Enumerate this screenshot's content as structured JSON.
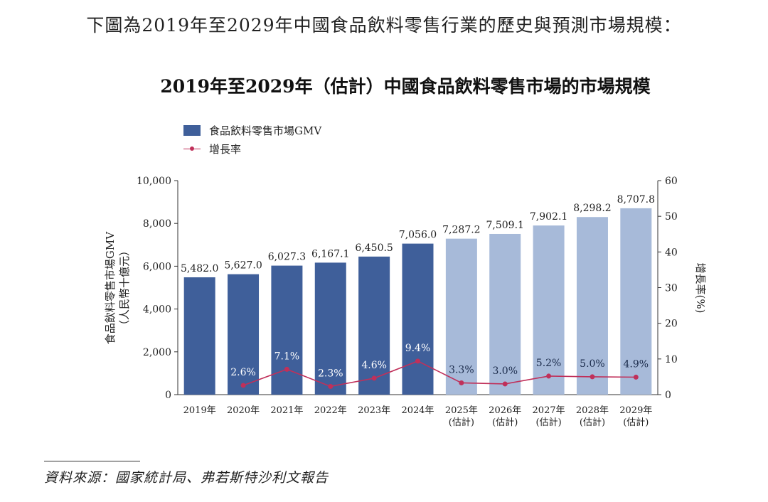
{
  "intro_text": "下圖為2019年至2029年中國食品飲料零售行業的歷史與預測市場規模：",
  "footnote": "資料來源：國家統計局、弗若斯特沙利文報告",
  "chart_data": {
    "type": "bar",
    "title": "2019年至2029年（估計）中國食品飲料零售市場的市場規模",
    "categories": [
      "2019年",
      "2020年",
      "2021年",
      "2022年",
      "2023年",
      "2024年",
      "2025年",
      "2026年",
      "2027年",
      "2028年",
      "2029年"
    ],
    "category_notes": [
      "",
      "",
      "",
      "",
      "",
      "",
      "(估計)",
      "(估計)",
      "(估計)",
      "(估計)",
      "(估計)"
    ],
    "ylabel": "食品飲料零售市場GMV",
    "ylabel_unit": "（人民幣十億元）",
    "y2label": "增長率(%)",
    "ylim": [
      0,
      10000
    ],
    "yticks": [
      "0",
      "2,000",
      "4,000",
      "6,000",
      "8,000",
      "10,000"
    ],
    "y2lim": [
      0,
      60
    ],
    "y2ticks": [
      "0",
      "10",
      "20",
      "30",
      "40",
      "50",
      "60"
    ],
    "grid": false,
    "legend_position": "top-left",
    "colors": {
      "historical": "#3f5f9a",
      "forecast": "#a7bad9",
      "growth": "#c0305a"
    },
    "series": [
      {
        "name": "食品飲料零售市場GMV",
        "type": "bar",
        "axis": "left",
        "values": [
          5482.0,
          5627.0,
          6027.3,
          6167.1,
          6450.5,
          7056.0,
          7287.2,
          7509.1,
          7902.1,
          8298.2,
          8707.8
        ],
        "labels": [
          "5,482.0",
          "5,627.0",
          "6,027.3",
          "6,167.1",
          "6,450.5",
          "7,056.0",
          "7,287.2",
          "7,509.1",
          "7,902.1",
          "8,298.2",
          "8,707.8"
        ],
        "forecast_from": "2025年"
      },
      {
        "name": "增長率",
        "type": "line",
        "axis": "right",
        "values": [
          null,
          2.6,
          7.1,
          2.3,
          4.6,
          9.4,
          3.3,
          3.0,
          5.2,
          5.0,
          4.9
        ],
        "labels": [
          "",
          "2.6%",
          "7.1%",
          "2.3%",
          "4.6%",
          "9.4%",
          "3.3%",
          "3.0%",
          "5.2%",
          "5.0%",
          "4.9%"
        ]
      }
    ]
  }
}
